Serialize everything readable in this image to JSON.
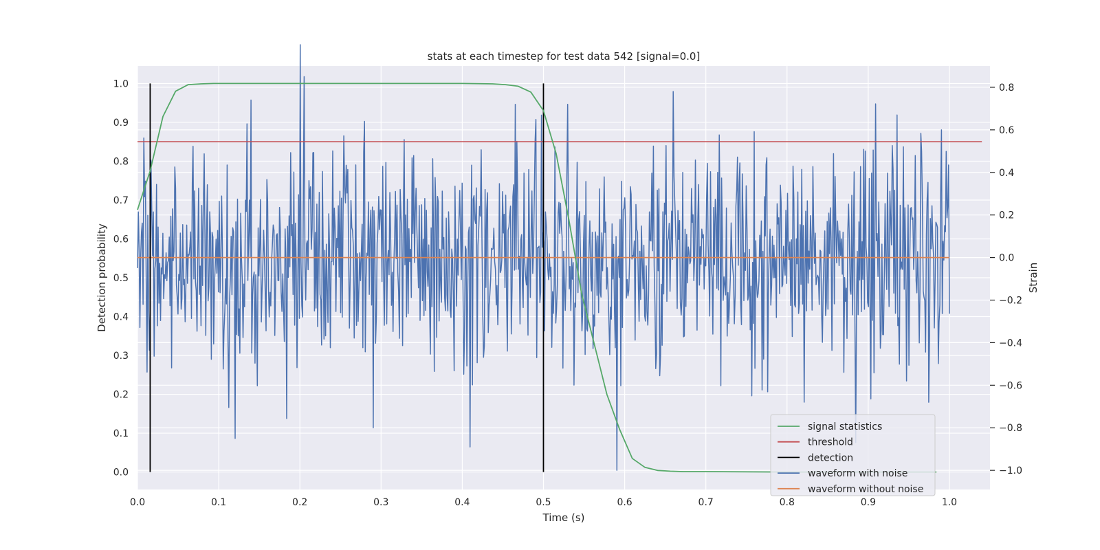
{
  "chart_data": {
    "type": "line",
    "title": "stats at each timestep for test data 542 [signal=0.0]",
    "xlabel": "Time (s)",
    "ylabel_left": "Detection probability",
    "ylabel_right": "Strain",
    "xlim": [
      0.0,
      1.05
    ],
    "ylim_left": [
      -0.045,
      1.045
    ],
    "ylim_right": [
      -1.09,
      0.9
    ],
    "x_ticks": [
      0.0,
      0.1,
      0.2,
      0.3,
      0.4,
      0.5,
      0.6,
      0.7,
      0.8,
      0.9,
      1.0
    ],
    "x_tick_labels": [
      "0.0",
      "0.1",
      "0.2",
      "0.3",
      "0.4",
      "0.5",
      "0.6",
      "0.7",
      "0.8",
      "0.9",
      "1.0"
    ],
    "y_left_ticks": [
      0.0,
      0.1,
      0.2,
      0.3,
      0.4,
      0.5,
      0.6,
      0.7,
      0.8,
      0.9,
      1.0
    ],
    "y_left_tick_labels": [
      "0.0",
      "0.1",
      "0.2",
      "0.3",
      "0.4",
      "0.5",
      "0.6",
      "0.7",
      "0.8",
      "0.9",
      "1.0"
    ],
    "y_right_ticks": [
      -1.0,
      -0.8,
      -0.6,
      -0.4,
      -0.2,
      0.0,
      0.2,
      0.4,
      0.6,
      0.8
    ],
    "y_right_tick_labels": [
      "−1.0",
      "−0.8",
      "−0.6",
      "−0.4",
      "−0.2",
      "0.0",
      "0.2",
      "0.4",
      "0.6",
      "0.8"
    ],
    "grid": true,
    "legend_position": "lower-right",
    "series": [
      {
        "name": "signal statistics",
        "axis": "left",
        "color": "#55a868",
        "x": [
          0.0,
          0.0156,
          0.0313,
          0.0469,
          0.0625,
          0.0781,
          0.0938,
          0.1094,
          0.125,
          0.15,
          0.2,
          0.25,
          0.3,
          0.35,
          0.4,
          0.4375,
          0.4531,
          0.4688,
          0.4844,
          0.5,
          0.5156,
          0.5313,
          0.5469,
          0.5625,
          0.5781,
          0.5938,
          0.6094,
          0.625,
          0.6406,
          0.6563,
          0.6719,
          0.6875,
          0.7,
          0.8,
          0.9,
          0.984
        ],
        "y": [
          0.675,
          0.775,
          0.915,
          0.98,
          0.997,
          0.999,
          1.0,
          1.0,
          1.0,
          1.0,
          1.0,
          1.0,
          1.0,
          1.0,
          1.0,
          0.999,
          0.997,
          0.993,
          0.978,
          0.93,
          0.82,
          0.65,
          0.46,
          0.33,
          0.2,
          0.11,
          0.035,
          0.012,
          0.004,
          0.002,
          0.001,
          0.001,
          0.001,
          0.0,
          0.0,
          0.0
        ]
      },
      {
        "name": "threshold",
        "axis": "left",
        "color": "#c44e52",
        "x": [
          0.0,
          1.04
        ],
        "y": [
          0.85,
          0.85
        ]
      },
      {
        "name": "detection",
        "axis": "left",
        "color": "#000000",
        "segments": [
          {
            "x": 0.0156,
            "y_min": 0.0,
            "y_max": 1.0
          },
          {
            "x": 0.5,
            "y_min": 0.0,
            "y_max": 1.0
          }
        ]
      },
      {
        "name": "waveform with noise",
        "axis": "right",
        "color": "#4c72b0",
        "x_start": 0.0,
        "x_end": 1.0,
        "n_points": 1024,
        "y_range": [
          -1.0,
          1.0
        ],
        "notable_peaks": [
          [
            0.14,
            0.74
          ],
          [
            0.2,
            1.0
          ],
          [
            0.205,
            0.85
          ],
          [
            0.28,
            0.64
          ],
          [
            0.465,
            0.72
          ],
          [
            0.53,
            0.72
          ],
          [
            0.66,
            0.78
          ],
          [
            0.935,
            0.67
          ],
          [
            0.99,
            0.6
          ]
        ],
        "notable_troughs": [
          [
            0.12,
            -0.85
          ],
          [
            0.29,
            -0.8
          ],
          [
            0.41,
            -0.89
          ],
          [
            0.59,
            -1.0
          ],
          [
            0.885,
            -0.87
          ],
          [
            0.975,
            -0.68
          ]
        ]
      },
      {
        "name": "waveform without noise",
        "axis": "right",
        "color": "#dd8452",
        "x": [
          0.0,
          1.0
        ],
        "y": [
          0.0,
          0.0
        ]
      }
    ]
  }
}
